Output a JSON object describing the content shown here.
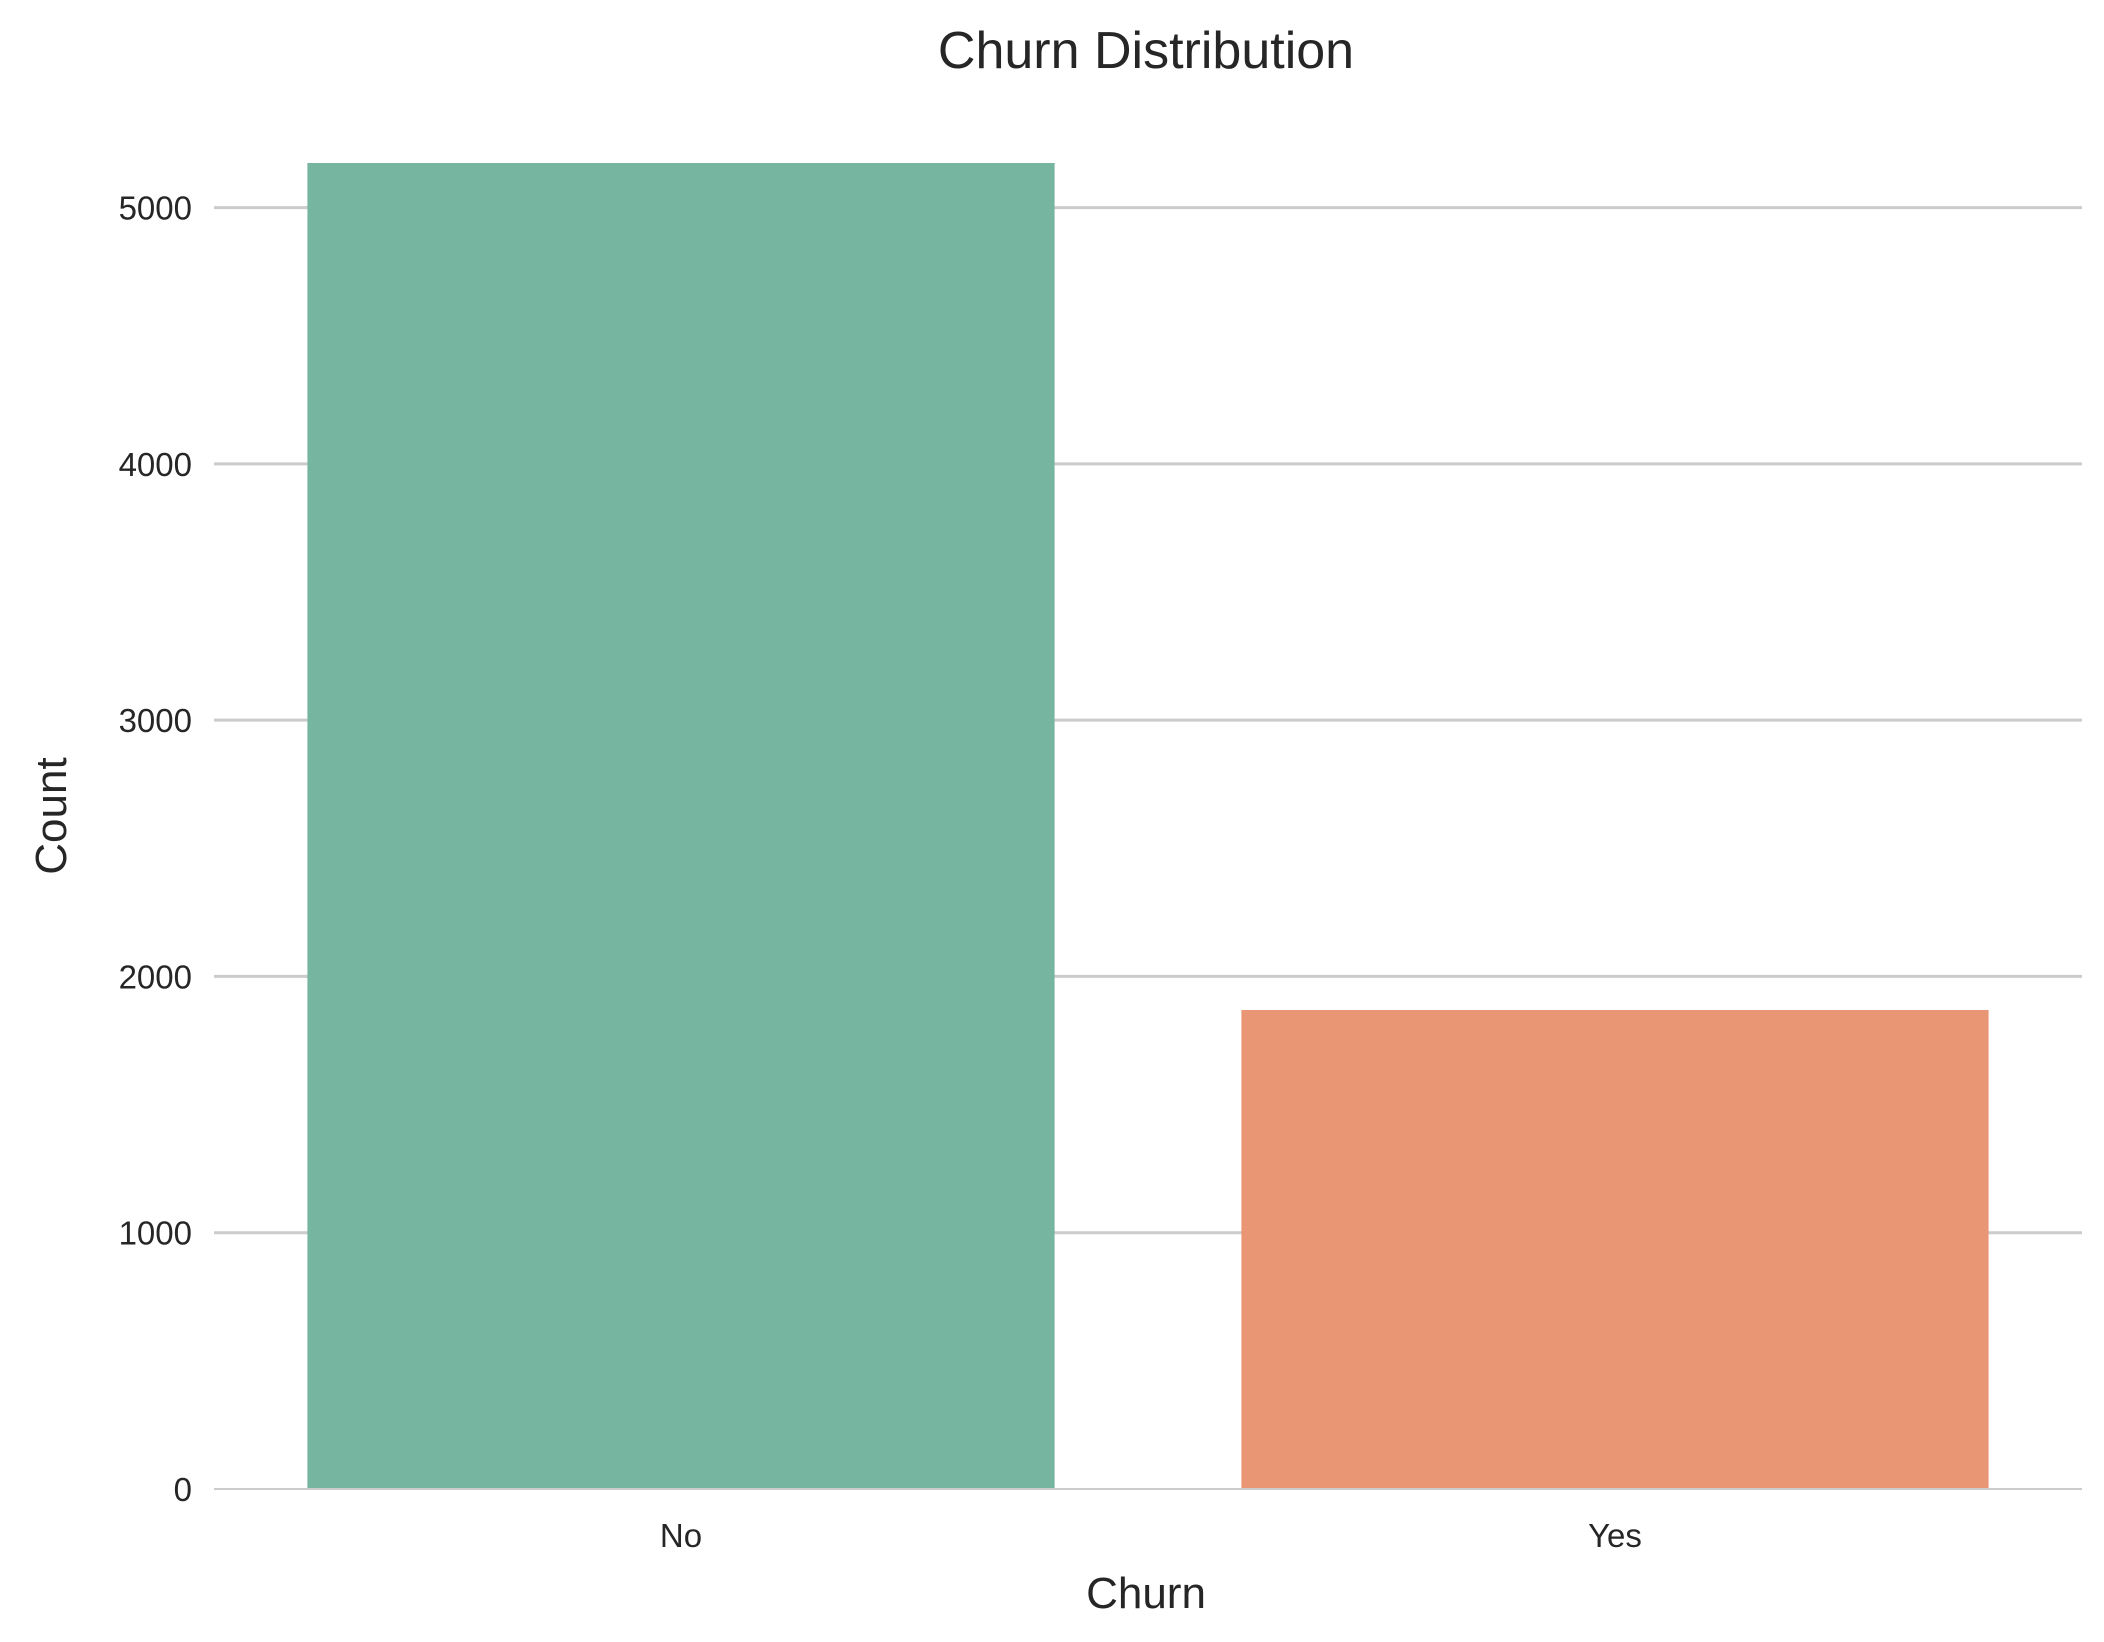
{
  "chart_data": {
    "type": "bar",
    "title": "Churn Distribution",
    "xlabel": "Churn",
    "ylabel": "Count",
    "categories": [
      "No",
      "Yes"
    ],
    "values": [
      5174,
      1869
    ],
    "ylim": [
      0,
      5174
    ],
    "yticks": [
      "0",
      "1000",
      "2000",
      "3000",
      "4000",
      "5000"
    ],
    "grid": true,
    "legend": "none",
    "colors": {
      "bars": [
        "#76b5a0",
        "#e99675"
      ],
      "grid": "#cccccc",
      "text": "#262626",
      "background": "#ffffff"
    }
  }
}
